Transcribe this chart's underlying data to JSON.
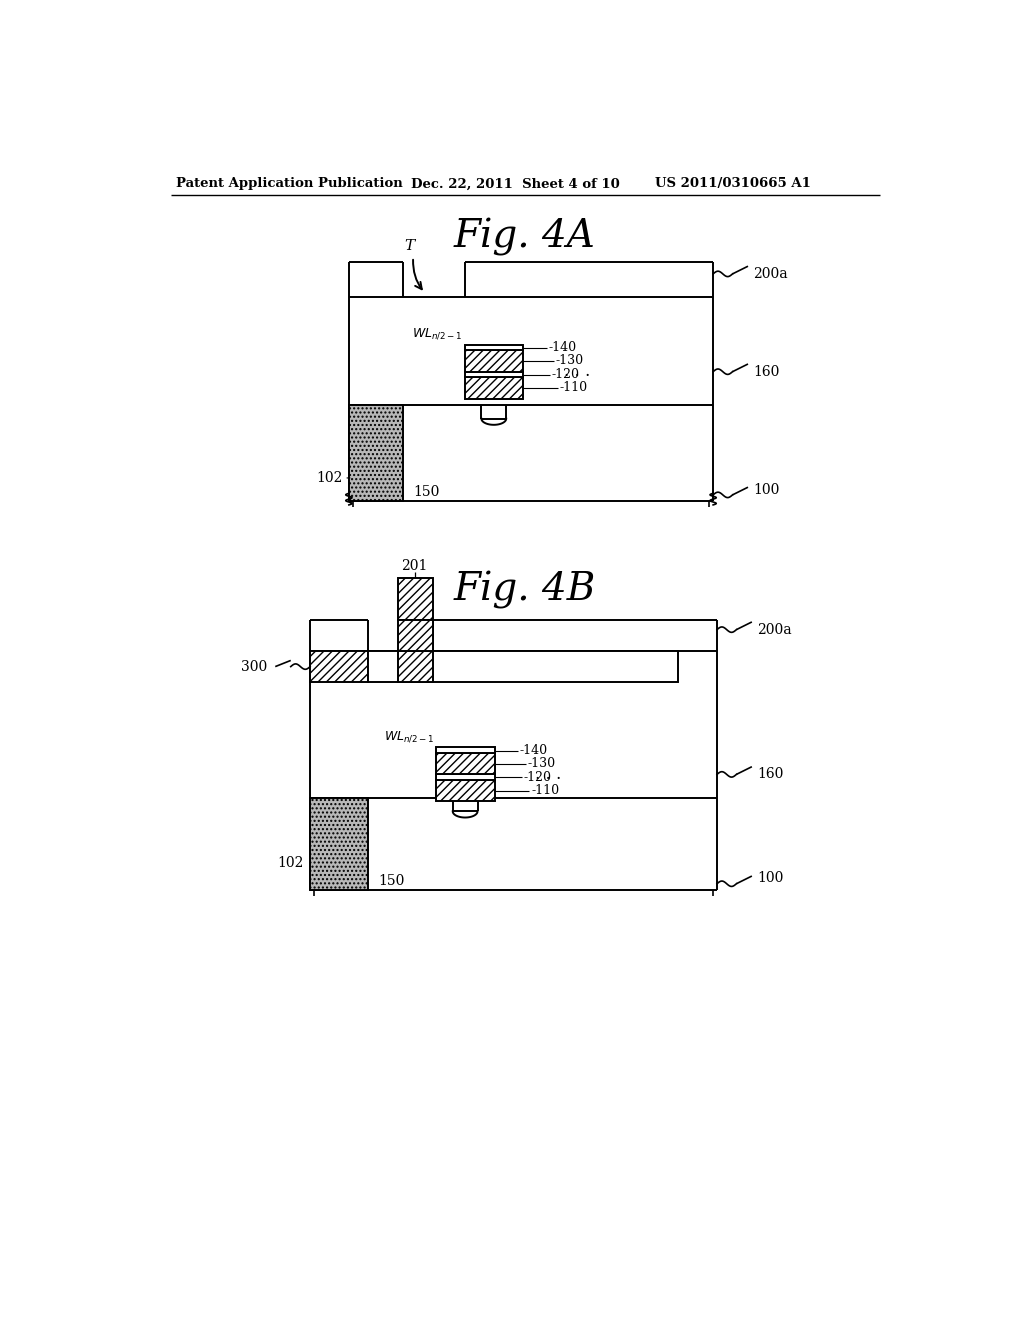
{
  "bg_color": "#ffffff",
  "header_text": "Patent Application Publication",
  "header_date": "Dec. 22, 2011  Sheet 4 of 10",
  "header_patent": "US 2011/0310665 A1",
  "fig4a_title": "Fig. 4A",
  "fig4b_title": "Fig. 4B"
}
